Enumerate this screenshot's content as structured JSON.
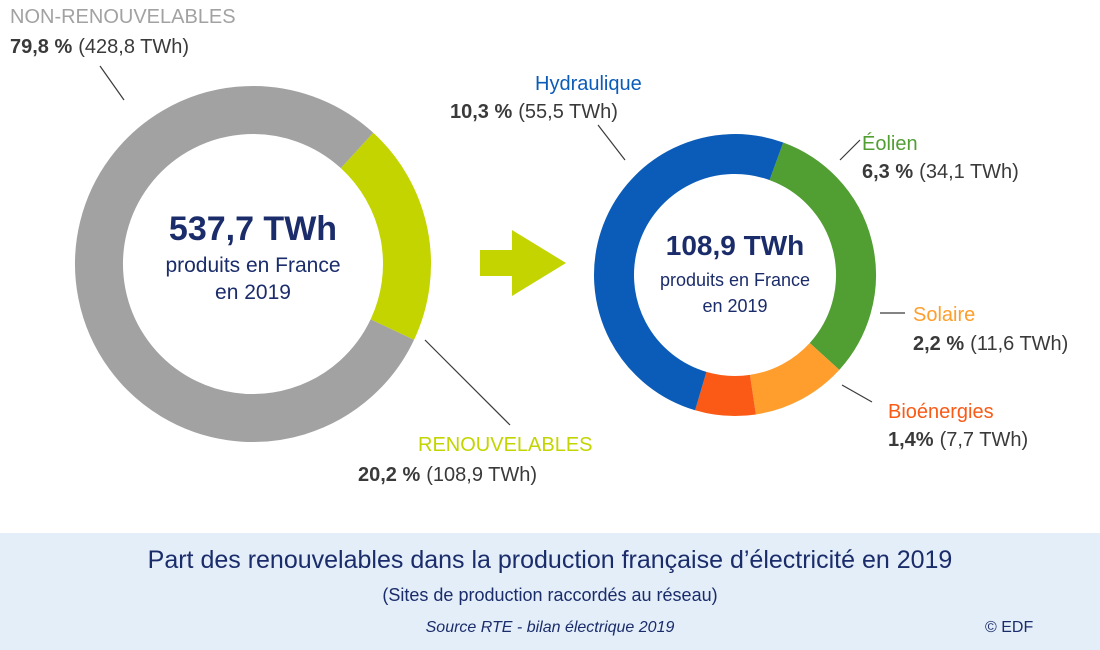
{
  "colors": {
    "non_renewable": "#a2a2a2",
    "renewable": "#c3d400",
    "hydraulique": "#0b5cb8",
    "eolien": "#519e33",
    "solaire": "#ff9e2c",
    "bioenergies": "#fa5a15",
    "arrow": "#c3d400",
    "center_total": "#1b2c6b",
    "footer_bg": "#e3eef8"
  },
  "chart_data": [
    {
      "type": "pie",
      "style": "donut",
      "center": {
        "value": "537,7 TWh",
        "line1": "produits en France",
        "line2": "en 2019"
      },
      "slices": [
        {
          "label": "NON-RENOUVELABLES",
          "percent_text": "79,8 %",
          "value_text": "(428,8 TWh)",
          "percent": 79.8,
          "twh": 428.8
        },
        {
          "label": "RENOUVELABLES",
          "percent_text": "20,2 %",
          "value_text": "(108,9 TWh)",
          "percent": 20.2,
          "twh": 108.9
        }
      ]
    },
    {
      "type": "pie",
      "style": "donut",
      "center": {
        "value": "108,9 TWh",
        "line1": "produits en France",
        "line2": "en 2019"
      },
      "slices": [
        {
          "label": "Éolien",
          "percent_text": "6,3 %",
          "value_text": "(34,1 TWh)",
          "percent": 6.3,
          "twh": 34.1
        },
        {
          "label": "Solaire",
          "percent_text": "2,2 %",
          "value_text": "(11,6 TWh)",
          "percent": 2.2,
          "twh": 11.6
        },
        {
          "label": "Bioénergies",
          "percent_text": "1,4%",
          "value_text": "(7,7 TWh)",
          "percent": 1.4,
          "twh": 7.7
        },
        {
          "label": "Hydraulique",
          "percent_text": "10,3 %",
          "value_text": "(55,5 TWh)",
          "percent": 10.3,
          "twh": 55.5
        }
      ]
    }
  ],
  "footer": {
    "title": "Part des renouvelables dans la production française d’électricité en 2019",
    "subtitle": "(Sites de production raccordés au réseau)",
    "source": "Source RTE - bilan électrique 2019",
    "copyright": "© EDF"
  }
}
